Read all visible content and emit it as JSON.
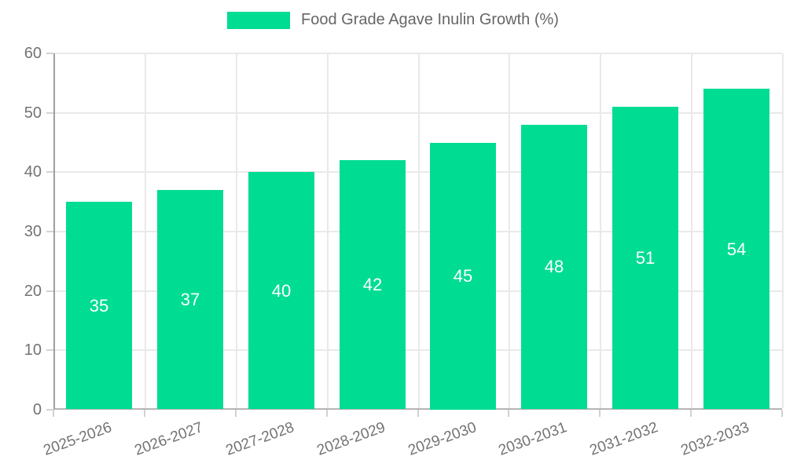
{
  "legend": {
    "label": "Food Grade Agave Inulin Growth (%)",
    "swatch_color": "#00dc92"
  },
  "chart_data": {
    "type": "bar",
    "title": "Food Grade Agave Inulin Growth (%)",
    "categories": [
      "2025-2026",
      "2026-2027",
      "2027-2028",
      "2028-2029",
      "2029-2030",
      "2030-2031",
      "2031-2032",
      "2032-2033"
    ],
    "values": [
      35,
      37,
      40,
      42,
      45,
      48,
      51,
      54
    ],
    "xlabel": "",
    "ylabel": "",
    "ylim": [
      0,
      60
    ],
    "ytick_step": 10,
    "ytick_labels": [
      "0",
      "10",
      "20",
      "30",
      "40",
      "50",
      "60"
    ],
    "grid": true,
    "legend_position": "top",
    "bar_color": "#00dc92",
    "value_label_color": "#ffffff",
    "value_labels_shown": true
  },
  "colors": {
    "background": "#ffffff",
    "bar": "#00dc92",
    "gridline": "#e9e9e9",
    "axis_line": "#9e9e9e",
    "tick_text": "#737373",
    "legend_text": "#666666",
    "value_label": "#ffffff"
  }
}
